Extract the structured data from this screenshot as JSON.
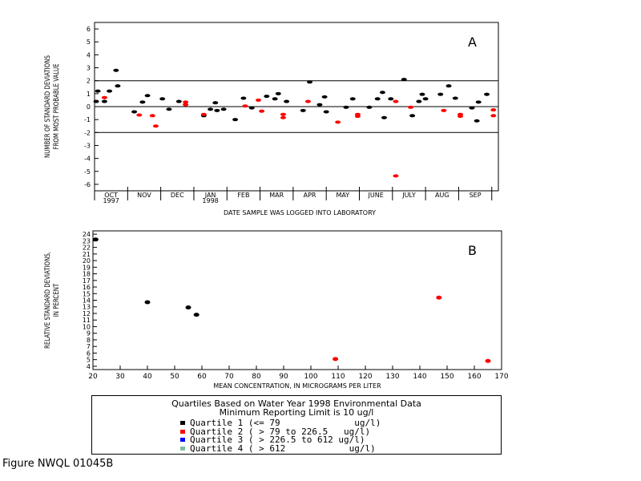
{
  "colors": {
    "q1": "#000000",
    "q2": "#ff0000",
    "q3": "#0000ff",
    "q4": "#7fbf9f"
  },
  "chart_data": [
    {
      "type": "scatter",
      "panel_label": "A",
      "ylabel_lines": [
        "NUMBER OF STANDARD DEVIATIONS",
        "FROM MOST PROBABLE VALUE"
      ],
      "xlabel": "DATE SAMPLE WAS LOGGED INTO LABORATORY",
      "ylim": [
        -6.5,
        6.5
      ],
      "yticks": [
        -6,
        -5,
        -4,
        -3,
        -2,
        -1,
        0,
        1,
        2,
        3,
        4,
        5,
        6
      ],
      "ytick_labels": [
        "-6",
        "-5",
        "-4",
        "-3",
        "-2",
        "-1",
        "0",
        "1",
        "2",
        "3",
        "4",
        "5",
        "6"
      ],
      "xlim": [
        0,
        12.2
      ],
      "month_labels": [
        {
          "text": "OCT",
          "pos": 0.5,
          "year": "1997"
        },
        {
          "text": "NOV",
          "pos": 1.5
        },
        {
          "text": "DEC",
          "pos": 2.5
        },
        {
          "text": "JAN",
          "pos": 3.5,
          "year": "1998"
        },
        {
          "text": "FEB",
          "pos": 4.5
        },
        {
          "text": "MAR",
          "pos": 5.5
        },
        {
          "text": "APR",
          "pos": 6.5
        },
        {
          "text": "MAY",
          "pos": 7.5
        },
        {
          "text": "JUNE",
          "pos": 8.5
        },
        {
          "text": "JULY",
          "pos": 9.5
        },
        {
          "text": "AUG",
          "pos": 10.5
        },
        {
          "text": "SEP",
          "pos": 11.5
        }
      ],
      "reference_lines": [
        -2,
        0,
        2
      ],
      "series": [
        {
          "color_key": "q1",
          "points": [
            [
              0.05,
              0.4
            ],
            [
              0.1,
              1.2
            ],
            [
              0.3,
              0.4
            ],
            [
              0.45,
              1.2
            ],
            [
              0.65,
              2.8
            ],
            [
              0.7,
              1.6
            ],
            [
              1.2,
              -0.4
            ],
            [
              1.45,
              0.35
            ],
            [
              1.6,
              0.85
            ],
            [
              2.05,
              0.6
            ],
            [
              2.25,
              -0.2
            ],
            [
              2.55,
              0.4
            ],
            [
              3.3,
              -0.7
            ],
            [
              3.5,
              -0.2
            ],
            [
              3.65,
              0.3
            ],
            [
              3.7,
              -0.3
            ],
            [
              3.9,
              -0.2
            ],
            [
              4.25,
              -1.0
            ],
            [
              4.5,
              0.65
            ],
            [
              4.75,
              -0.1
            ],
            [
              5.2,
              0.8
            ],
            [
              5.45,
              0.6
            ],
            [
              5.55,
              1.0
            ],
            [
              5.8,
              0.4
            ],
            [
              6.3,
              -0.3
            ],
            [
              6.5,
              1.9
            ],
            [
              6.8,
              0.15
            ],
            [
              6.95,
              0.75
            ],
            [
              7.0,
              -0.4
            ],
            [
              7.6,
              -0.05
            ],
            [
              7.8,
              0.6
            ],
            [
              8.3,
              -0.05
            ],
            [
              8.55,
              0.6
            ],
            [
              8.7,
              1.1
            ],
            [
              8.75,
              -0.85
            ],
            [
              8.95,
              0.6
            ],
            [
              9.35,
              2.1
            ],
            [
              9.6,
              -0.7
            ],
            [
              9.8,
              0.4
            ],
            [
              9.9,
              0.95
            ],
            [
              10.0,
              0.6
            ],
            [
              10.45,
              0.95
            ],
            [
              10.7,
              1.6
            ],
            [
              10.9,
              0.65
            ],
            [
              11.4,
              -0.1
            ],
            [
              11.55,
              -1.1
            ],
            [
              11.6,
              0.35
            ],
            [
              11.85,
              0.95
            ]
          ]
        },
        {
          "color_key": "q2",
          "points": [
            [
              0.3,
              0.7
            ],
            [
              1.35,
              -0.65
            ],
            [
              1.75,
              -0.7
            ],
            [
              1.85,
              -1.5
            ],
            [
              2.75,
              0.35
            ],
            [
              2.75,
              0.15
            ],
            [
              3.3,
              -0.6
            ],
            [
              4.55,
              0.05
            ],
            [
              4.95,
              0.5
            ],
            [
              5.05,
              -0.35
            ],
            [
              5.7,
              -0.6
            ],
            [
              5.7,
              -0.85
            ],
            [
              6.45,
              0.4
            ],
            [
              7.35,
              -1.2
            ],
            [
              7.95,
              -0.6
            ],
            [
              7.95,
              -0.75
            ],
            [
              9.1,
              0.4
            ],
            [
              9.1,
              -5.35
            ],
            [
              9.55,
              -0.05
            ],
            [
              10.55,
              -0.3
            ],
            [
              11.05,
              -0.6
            ],
            [
              11.05,
              -0.75
            ],
            [
              12.05,
              -0.25
            ],
            [
              12.05,
              -0.7
            ]
          ]
        }
      ]
    },
    {
      "type": "scatter",
      "panel_label": "B",
      "ylabel_lines": [
        "RELATIVE STANDARD DEVIATIONS,",
        "IN PERCENT"
      ],
      "xlabel": "MEAN CONCENTRATION, IN MICROGRAMS PER LITER",
      "xlim": [
        20,
        170
      ],
      "xticks": [
        20,
        30,
        40,
        50,
        60,
        70,
        80,
        90,
        100,
        110,
        120,
        130,
        140,
        150,
        160,
        170
      ],
      "ylim": [
        3.5,
        24.5
      ],
      "yticks": [
        4,
        5,
        6,
        7,
        8,
        9,
        10,
        11,
        12,
        13,
        14,
        15,
        16,
        17,
        18,
        19,
        20,
        21,
        22,
        23,
        24
      ],
      "ytick_labels": [
        "4",
        "5",
        "6",
        "7",
        "8",
        "9",
        "10",
        "11",
        "12",
        "13",
        "14",
        "15",
        "16",
        "17",
        "18",
        "19",
        "20",
        "21",
        "22",
        "23",
        "24"
      ],
      "series": [
        {
          "color_key": "q1",
          "points": [
            [
              21,
              23.2
            ],
            [
              40,
              13.7
            ],
            [
              55,
              12.9
            ],
            [
              58,
              11.8
            ]
          ]
        },
        {
          "color_key": "q2",
          "points": [
            [
              109,
              5.1
            ],
            [
              147,
              14.4
            ],
            [
              165,
              4.8
            ]
          ]
        }
      ]
    }
  ],
  "legend": {
    "title_line1": "Quartiles Based on Water Year 1998 Environmental Data",
    "title_line2": "Minimum Reporting Limit is 10 ug/l",
    "items": [
      {
        "color_key": "q1",
        "label": "Quartile 1 (<= 79              ug/l)"
      },
      {
        "color_key": "q2",
        "label": "Quartile 2 ( > 79 to 226.5   ug/l)"
      },
      {
        "color_key": "q3",
        "label": "Quartile 3 ( > 226.5 to 612 ug/l)"
      },
      {
        "color_key": "q4",
        "label": "Quartile 4 ( > 612            ug/l)"
      }
    ]
  },
  "figure_label": "Figure NWQL 01045B"
}
